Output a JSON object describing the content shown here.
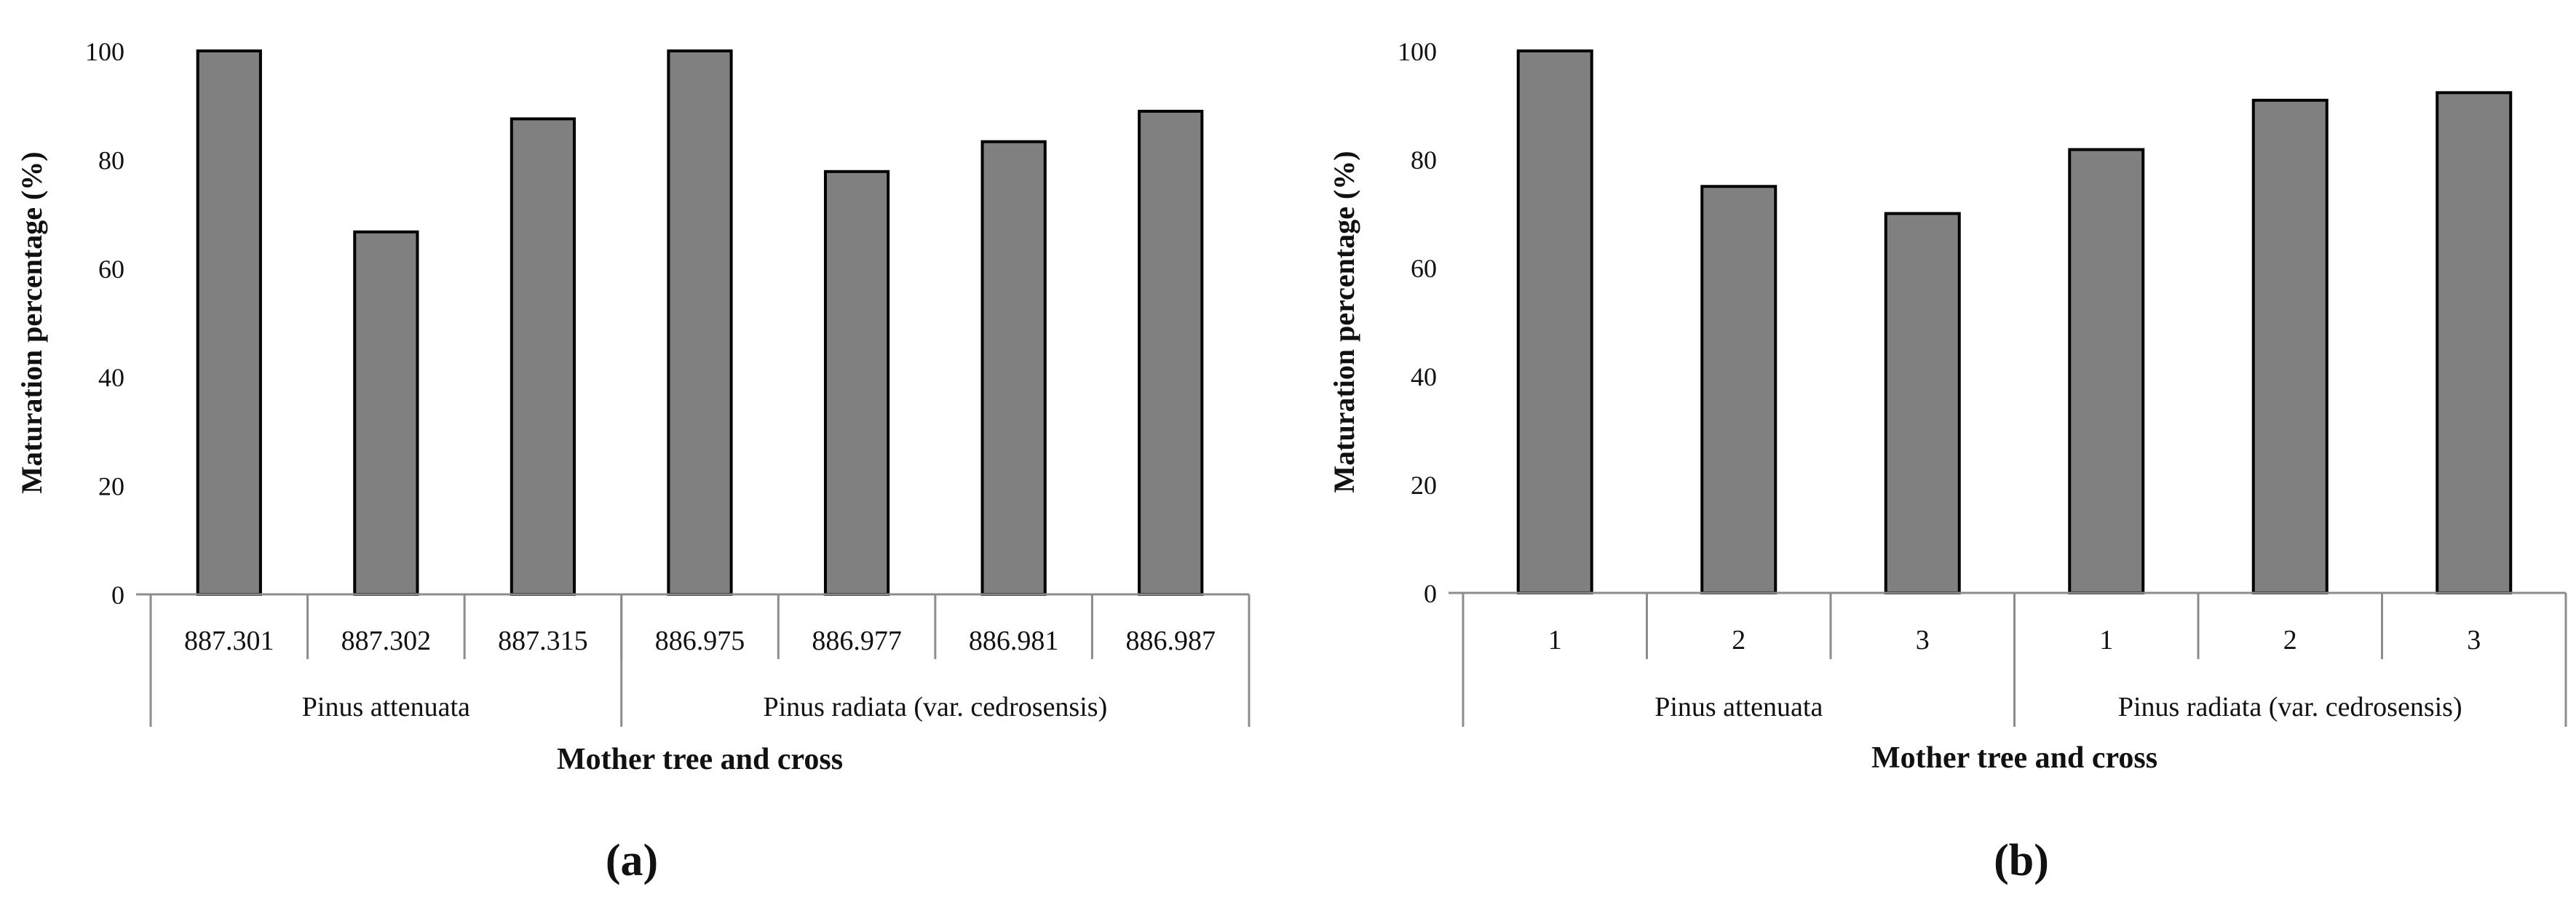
{
  "chart_data": [
    {
      "type": "bar",
      "panel_label": "(a)",
      "categories": [
        "887.301",
        "887.302",
        "887.315",
        "886.975",
        "886.977",
        "886.981",
        "886.987"
      ],
      "groups": [
        {
          "name": "Pinus attenuata",
          "categories": [
            "887.301",
            "887.302",
            "887.315"
          ]
        },
        {
          "name": "Pinus radiata (var. cedrosensis)",
          "categories": [
            "886.975",
            "886.977",
            "886.981",
            "886.987"
          ]
        }
      ],
      "values": [
        100,
        66.7,
        87.5,
        100,
        77.8,
        83.3,
        88.9
      ],
      "xlabel": "Mother tree and cross",
      "ylabel": "Maturation percentage (%)",
      "ylim": [
        0,
        100
      ],
      "yticks": [
        "0",
        "20",
        "40",
        "60",
        "80",
        "100"
      ],
      "bar_color": "#808080",
      "grid": false,
      "legend": "none"
    },
    {
      "type": "bar",
      "panel_label": "(b)",
      "categories": [
        "1",
        "2",
        "3",
        "1",
        "2",
        "3"
      ],
      "groups": [
        {
          "name": "Pinus attenuata",
          "categories": [
            "1",
            "2",
            "3"
          ]
        },
        {
          "name": "Pinus radiata (var. cedrosensis)",
          "categories": [
            "1",
            "2",
            "3"
          ]
        }
      ],
      "values": [
        100,
        75,
        70,
        81.8,
        90.9,
        92.3
      ],
      "xlabel": "Mother tree and cross",
      "ylabel": "Maturation percentage (%)",
      "ylim": [
        0,
        100
      ],
      "yticks": [
        "0",
        "20",
        "40",
        "60",
        "80",
        "100"
      ],
      "bar_color": "#808080",
      "grid": false,
      "legend": "none"
    }
  ]
}
